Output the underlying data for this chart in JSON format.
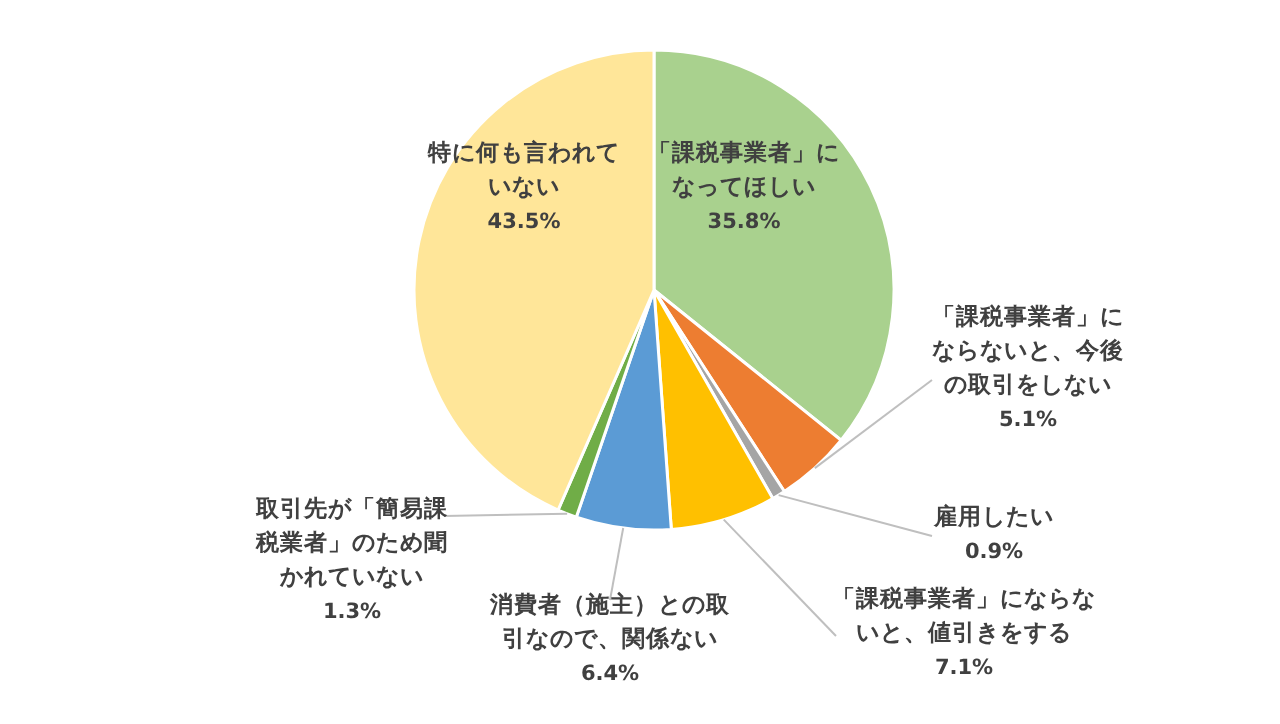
{
  "chart_data": {
    "type": "pie",
    "categories": [
      "「課税事業者」になってほしい",
      "「課税事業者」にならないと、今後の取引をしない",
      "雇用したい",
      "「課税事業者」にならないと、値引きをする",
      "消費者（施主）との取引なので、関係ない",
      "取引先が「簡易課税業者」のため聞かれていない",
      "特に何も言われていない"
    ],
    "values": [
      35.8,
      5.1,
      0.9,
      7.1,
      6.4,
      1.3,
      43.5
    ],
    "colors": [
      "#a9d18e",
      "#ed7d31",
      "#a5a5a5",
      "#ffc000",
      "#5b9bd5",
      "#70ad47",
      "#ffe699"
    ],
    "value_labels": [
      "35.8%",
      "5.1%",
      "0.9%",
      "7.1%",
      "6.4%",
      "1.3%",
      "43.5%"
    ]
  }
}
